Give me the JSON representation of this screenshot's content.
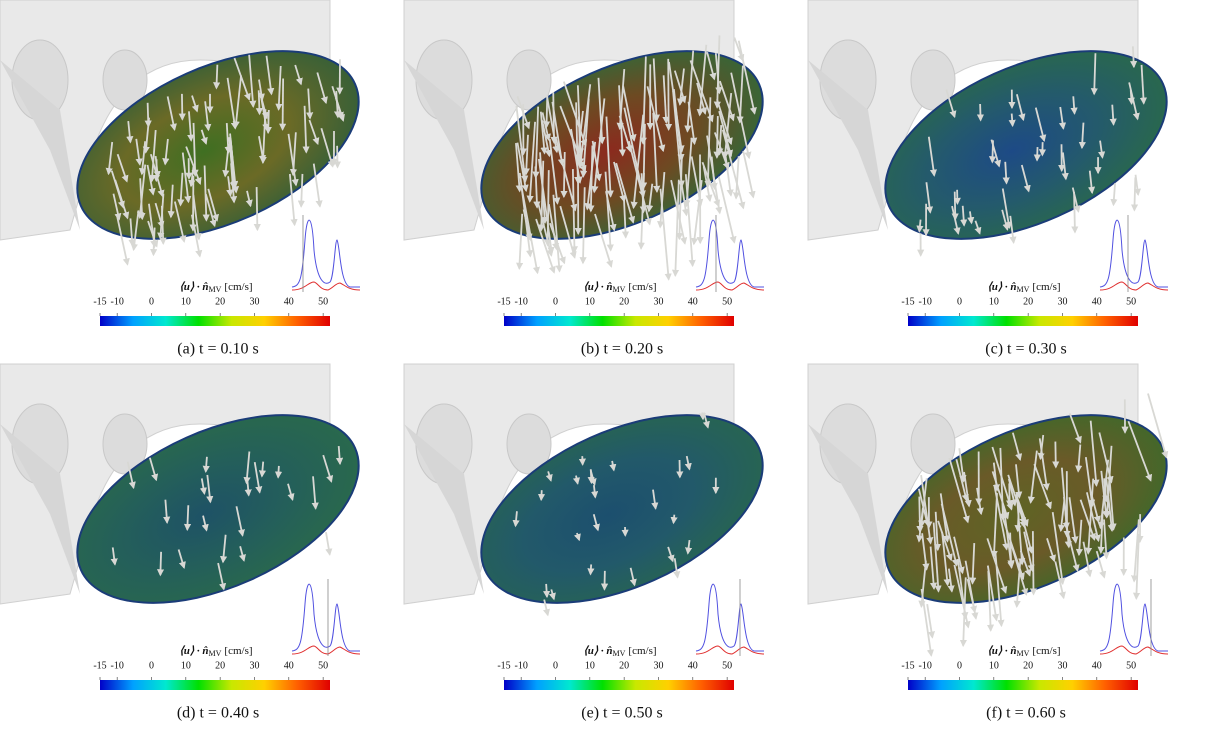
{
  "figure": {
    "colorbar": {
      "label": "⟨u⟩ · n̂",
      "label_sub": "MV",
      "label_unit": "[cm/s]",
      "lim": [
        -15,
        52
      ],
      "ticks": [
        -15,
        -10,
        0,
        10,
        20,
        30,
        40,
        50
      ],
      "colors": [
        "#0000c8",
        "#00a0ff",
        "#00e8d0",
        "#00e000",
        "#c8e800",
        "#ffd000",
        "#ff6000",
        "#e00000"
      ]
    },
    "panels": [
      {
        "caption": "(a) t = 0.10 s",
        "surface_color": [
          "#3f6f22",
          "#6b6a26",
          "#2f5e3a"
        ]
      },
      {
        "caption": "(b) t = 0.20 s",
        "surface_color": [
          "#8b2a1e",
          "#6d4a22",
          "#2f6a3a"
        ]
      },
      {
        "caption": "(c) t = 0.30 s",
        "surface_color": [
          "#1d4a86",
          "#245a6c",
          "#2a6a48"
        ]
      },
      {
        "caption": "(d) t = 0.40 s",
        "surface_color": [
          "#1e5266",
          "#245f5a",
          "#2a6a4a"
        ]
      },
      {
        "caption": "(e) t = 0.50 s",
        "surface_color": [
          "#1c4f6e",
          "#22596a",
          "#28664e"
        ]
      },
      {
        "caption": "(f) t = 0.60 s",
        "surface_color": [
          "#5e6424",
          "#6a5a28",
          "#3c6a2a"
        ]
      }
    ]
  }
}
